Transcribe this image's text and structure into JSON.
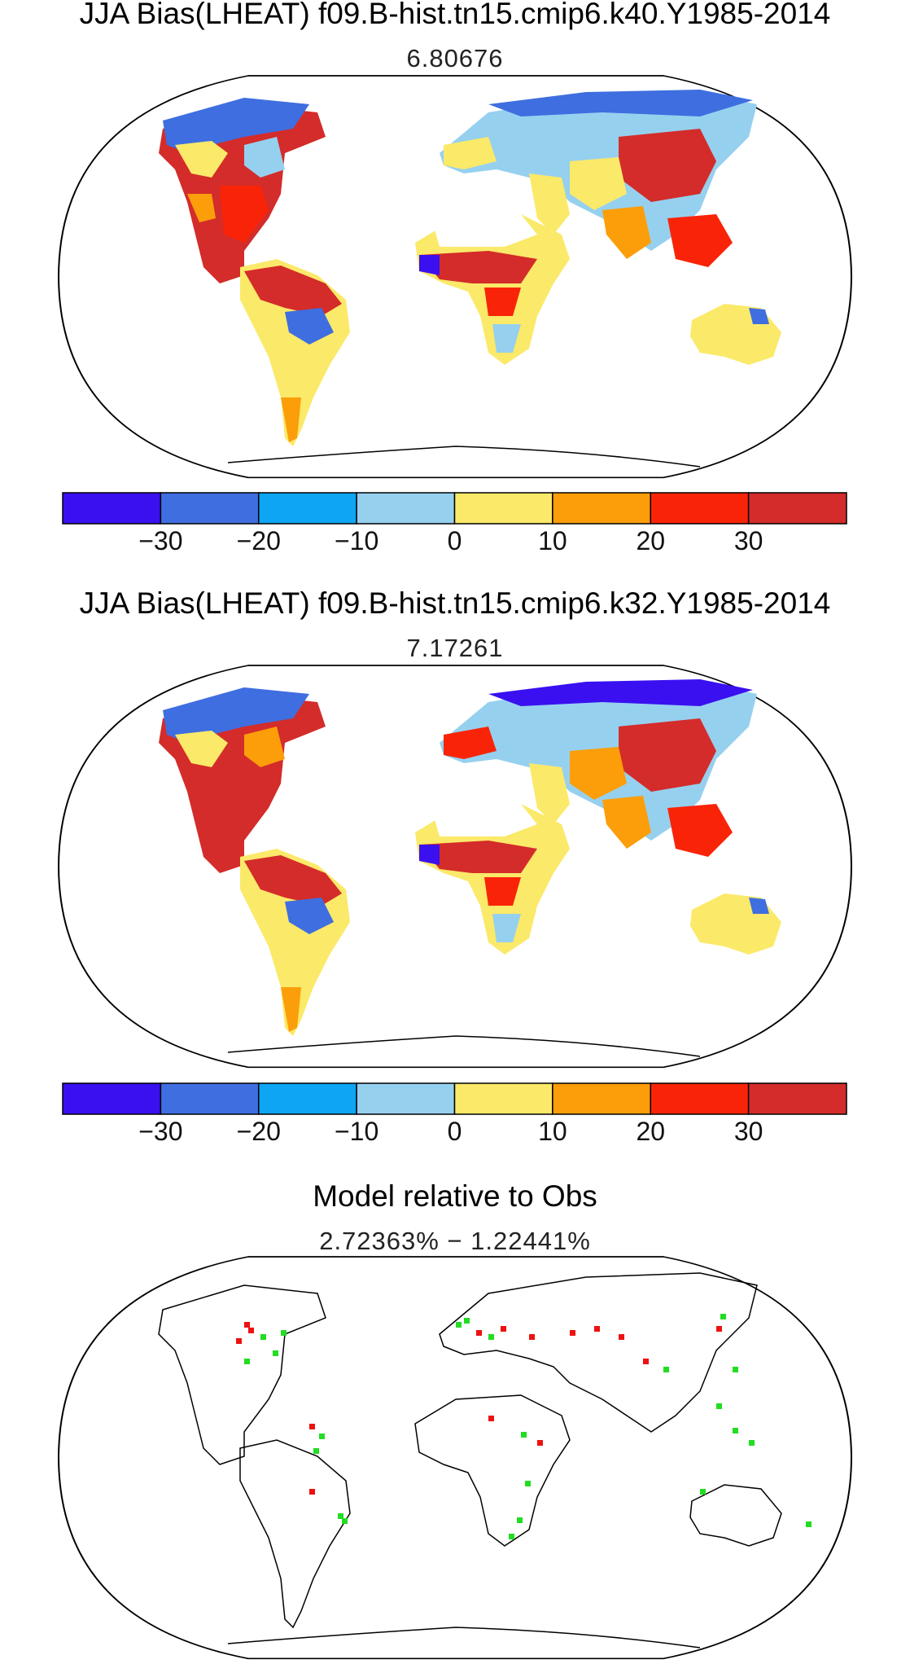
{
  "panels": [
    {
      "title": "JJA Bias(LHEAT) f09.B-hist.tn15.cmip6.k40.Y1985-2014",
      "subtitle": "6.80676",
      "colorbar": {
        "colors": [
          "#3a10f0",
          "#3f6ee0",
          "#0ea5f5",
          "#96d0ef",
          "#fbe969",
          "#fb9e0a",
          "#f92408",
          "#d32c2a"
        ],
        "tick_labels": [
          "−30",
          "−20",
          "−10",
          "0",
          "10",
          "20",
          "30"
        ]
      }
    },
    {
      "title": "JJA Bias(LHEAT) f09.B-hist.tn15.cmip6.k32.Y1985-2014",
      "subtitle": "7.17261",
      "colorbar": {
        "colors": [
          "#3a10f0",
          "#3f6ee0",
          "#0ea5f5",
          "#96d0ef",
          "#fbe969",
          "#fb9e0a",
          "#f92408",
          "#d32c2a"
        ],
        "tick_labels": [
          "−30",
          "−20",
          "−10",
          "0",
          "10",
          "20",
          "30"
        ]
      }
    },
    {
      "title": "Model relative to Obs",
      "subtitle": "2.72363% − 1.22441%",
      "marker_colors": {
        "better": "#22dd22",
        "worse": "#ee1111"
      }
    }
  ]
}
